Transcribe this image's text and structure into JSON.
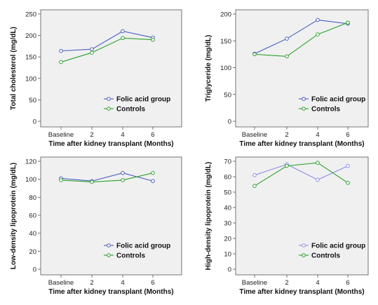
{
  "chart_data": [
    {
      "type": "line",
      "categories": [
        "Baseline",
        "2",
        "4",
        "6"
      ],
      "xlabel": "Time after kidney transplant (Months)",
      "ylabel": "Total cholesterol (mg/dL)",
      "ylim": [
        0,
        250
      ],
      "yticks": [
        0,
        50,
        100,
        150,
        200,
        250
      ],
      "legend": "bottom-right",
      "series": [
        {
          "name": "Folic acid group",
          "color": "#4a5fc1",
          "marker": "hollow-circle",
          "values": [
            164,
            168,
            210,
            195
          ]
        },
        {
          "name": "Controls",
          "color": "#2ca02c",
          "marker": "hollow-circle",
          "values": [
            138,
            160,
            194,
            190
          ]
        }
      ]
    },
    {
      "type": "line",
      "categories": [
        "Baseline",
        "2",
        "4",
        "6"
      ],
      "xlabel": "Time after kidney transplant (Months)",
      "ylabel": "Triglyceride (mg/dL)",
      "ylim": [
        0,
        200
      ],
      "yticks": [
        0,
        50,
        100,
        150,
        200
      ],
      "legend": "bottom-right",
      "series": [
        {
          "name": "Folic acid group",
          "color": "#4a5fc1",
          "marker": "hollow-circle",
          "values": [
            126,
            154,
            189,
            182
          ]
        },
        {
          "name": "Controls",
          "color": "#2ca02c",
          "marker": "hollow-circle",
          "values": [
            125,
            121,
            162,
            184
          ]
        }
      ]
    },
    {
      "type": "line",
      "categories": [
        "Baseline",
        "2",
        "4",
        "6"
      ],
      "xlabel": "Time after kidney transplant (Months)",
      "ylabel": "Low-density lipoprotein (mg/dL)",
      "ylim": [
        0,
        120
      ],
      "yticks": [
        0,
        20,
        40,
        60,
        80,
        100,
        120
      ],
      "legend": "bottom-right",
      "series": [
        {
          "name": "Folic acid group",
          "color": "#4a5fc1",
          "marker": "hollow-circle",
          "values": [
            101,
            98,
            107,
            98
          ]
        },
        {
          "name": "Controls",
          "color": "#2ca02c",
          "marker": "hollow-circle",
          "values": [
            99,
            97,
            99,
            107
          ]
        }
      ]
    },
    {
      "type": "line",
      "categories": [
        "Baseline",
        "2",
        "4",
        "6"
      ],
      "xlabel": "Time after kidney transplant (Months)",
      "ylabel": "High-density lipoprotein (mg/dL)",
      "ylim": [
        0,
        70
      ],
      "yticks": [
        0,
        10,
        20,
        30,
        40,
        50,
        60,
        70
      ],
      "legend": "bottom-right",
      "series": [
        {
          "name": "Folic acid group",
          "color": "#8a8fe0",
          "marker": "hollow-circle",
          "values": [
            61,
            68,
            58,
            67
          ]
        },
        {
          "name": "Controls",
          "color": "#2ca02c",
          "marker": "hollow-circle",
          "values": [
            54,
            67,
            69,
            56
          ]
        }
      ]
    }
  ]
}
